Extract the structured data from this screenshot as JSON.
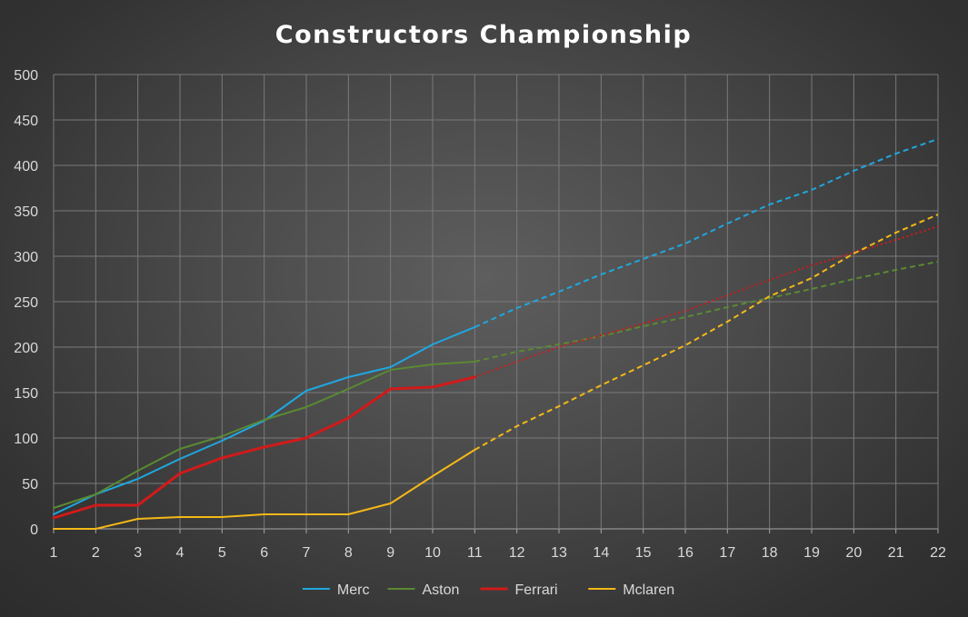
{
  "chart_data": {
    "type": "line",
    "title": "Constructors Championship",
    "x": [
      1,
      2,
      3,
      4,
      5,
      6,
      7,
      8,
      9,
      10,
      11,
      12,
      13,
      14,
      15,
      16,
      17,
      18,
      19,
      20,
      21,
      22
    ],
    "ylim": [
      0,
      500
    ],
    "yticks": [
      0,
      50,
      100,
      150,
      200,
      250,
      300,
      350,
      400,
      450,
      500
    ],
    "grid": true,
    "legend_position": "bottom",
    "series": [
      {
        "name": "Merc",
        "color": "#1fa7e0",
        "actual_x": [
          1,
          2,
          3,
          4,
          5,
          6,
          7,
          8,
          9,
          10,
          11
        ],
        "actual_y": [
          16,
          38,
          55,
          77,
          97,
          119,
          152,
          167,
          178,
          203,
          222
        ],
        "projected_style": "dashed",
        "projected_x": [
          11,
          12,
          13,
          14,
          15,
          16,
          17,
          18,
          19,
          20,
          21,
          22
        ],
        "projected_y": [
          222,
          243,
          261,
          280,
          297,
          314,
          336,
          357,
          373,
          394,
          413,
          429
        ]
      },
      {
        "name": "Aston",
        "color": "#5a8a32",
        "actual_x": [
          1,
          2,
          3,
          4,
          5,
          6,
          7,
          8,
          9,
          10,
          11
        ],
        "actual_y": [
          23,
          38,
          64,
          88,
          102,
          120,
          134,
          154,
          175,
          181,
          184
        ],
        "projected_style": "dashed",
        "projected_x": [
          11,
          12,
          13,
          14,
          15,
          16,
          17,
          18,
          19,
          20,
          21,
          22
        ],
        "projected_y": [
          184,
          195,
          203,
          212,
          223,
          233,
          244,
          254,
          264,
          275,
          285,
          294
        ]
      },
      {
        "name": "Ferrari",
        "color": "#d11a1a",
        "actual_x": [
          1,
          2,
          3,
          4,
          5,
          6,
          7,
          8,
          9,
          10,
          11
        ],
        "actual_y": [
          12,
          26,
          26,
          61,
          78,
          90,
          100,
          122,
          154,
          156,
          167
        ],
        "projected_style": "dotted",
        "projected_x": [
          11,
          12,
          13,
          14,
          15,
          16,
          17,
          18,
          19,
          20,
          21,
          22
        ],
        "projected_y": [
          167,
          184,
          200,
          213,
          226,
          240,
          257,
          274,
          290,
          304,
          318,
          333
        ]
      },
      {
        "name": "Mclaren",
        "color": "#f4b817",
        "actual_x": [
          1,
          2,
          3,
          4,
          5,
          6,
          7,
          8,
          9,
          10,
          11
        ],
        "actual_y": [
          0,
          0,
          11,
          13,
          13,
          16,
          16,
          16,
          28,
          58,
          87
        ],
        "projected_style": "dashed",
        "projected_x": [
          11,
          12,
          13,
          14,
          15,
          16,
          17,
          18,
          19,
          20,
          21,
          22
        ],
        "projected_y": [
          87,
          113,
          135,
          158,
          180,
          202,
          228,
          256,
          276,
          303,
          326,
          346
        ]
      }
    ]
  }
}
